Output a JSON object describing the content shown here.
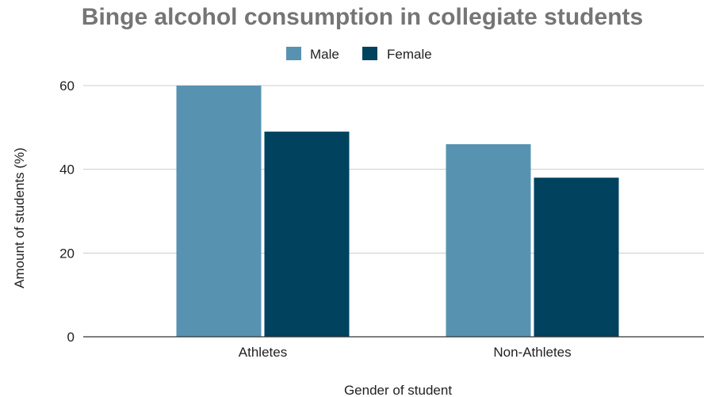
{
  "chart_data": {
    "type": "bar",
    "title": "Binge alcohol consumption in collegiate students",
    "xlabel": "Gender of student",
    "ylabel": "Amount of students (%)",
    "categories": [
      "Athletes",
      "Non-Athletes"
    ],
    "series": [
      {
        "name": "Male",
        "values": [
          60,
          46
        ],
        "color": "#5793b1"
      },
      {
        "name": "Female",
        "values": [
          49,
          38
        ],
        "color": "#01425f"
      }
    ],
    "ylim": [
      0,
      60
    ],
    "yticks": [
      0,
      20,
      40,
      60
    ],
    "grid": true,
    "legend_position": "top-center"
  }
}
